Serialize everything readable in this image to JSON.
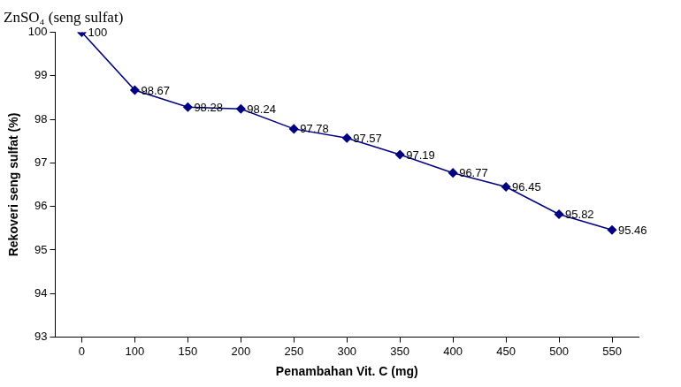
{
  "chart_data": {
    "type": "line",
    "title": "ZnSO₄ (seng sulfat)",
    "x_label": "Penambahan Vit. C (mg)",
    "y_label": "Rekoveri seng sulfat (%)",
    "categories": [
      "0",
      "100",
      "150",
      "200",
      "250",
      "300",
      "350",
      "400",
      "450",
      "500",
      "550"
    ],
    "values": [
      100,
      98.67,
      98.28,
      98.24,
      97.78,
      97.57,
      97.19,
      96.77,
      96.45,
      95.82,
      95.46
    ],
    "color": "#000080",
    "marker": "diamond",
    "line_style": "solid",
    "ylim": [
      93,
      100
    ],
    "yticks": [
      93,
      94,
      95,
      96,
      97,
      98,
      99,
      100
    ],
    "grid": false,
    "data_labels": true
  }
}
